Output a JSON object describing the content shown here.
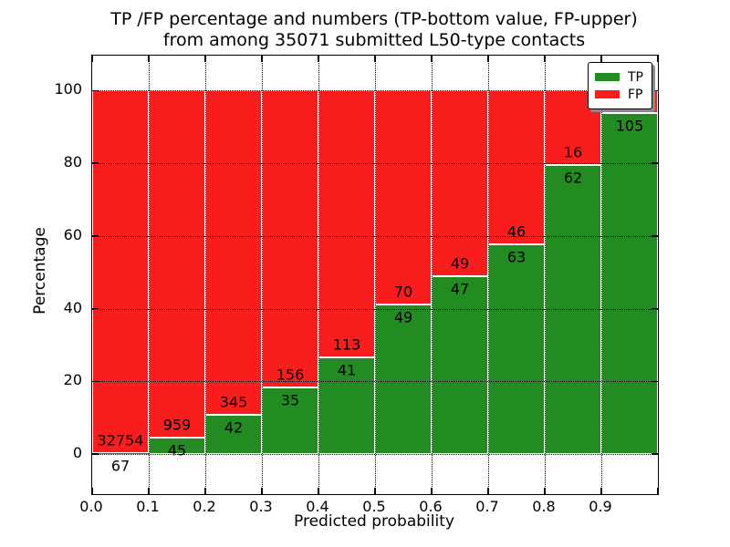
{
  "title": {
    "line1": "TP /FP percentage and numbers (TP-bottom value, FP-upper)",
    "line2": "from among 35071 submitted L50-type contacts"
  },
  "chart_data": {
    "type": "bar",
    "stacked": true,
    "normalized": "each bin scaled to 100%, green TP portion on bottom, red FP portion on top",
    "title": "TP /FP percentage and numbers (TP-bottom value, FP-upper) from among 35071 submitted L50-type contacts",
    "xlabel": "Predicted probability",
    "ylabel": "Percentage",
    "total_contacts": 35071,
    "xlim": [
      0.0,
      1.0
    ],
    "ylim": [
      -11,
      109.6
    ],
    "x_tick_labels": [
      "0.0",
      "0.1",
      "0.2",
      "0.3",
      "0.4",
      "0.5",
      "0.6",
      "0.7",
      "0.8",
      "0.9"
    ],
    "y_tick_values": [
      0,
      20,
      40,
      60,
      80,
      100
    ],
    "y_tick_labels": [
      "0",
      "20",
      "40",
      "60",
      "80",
      "100"
    ],
    "grid": "black dotted gridlines at all ticks, drawn above bars",
    "series_colors": {
      "tp": "#228b22",
      "fp": "#fa1d1d"
    },
    "legend": {
      "position": "upper right",
      "entries": [
        {
          "label": "TP",
          "color": "#228b22"
        },
        {
          "label": "FP",
          "color": "#fa1d1d"
        }
      ]
    },
    "bins": [
      {
        "x_start": 0.0,
        "x_end": 0.1,
        "tp": 67,
        "fp": 32754
      },
      {
        "x_start": 0.1,
        "x_end": 0.2,
        "tp": 45,
        "fp": 959
      },
      {
        "x_start": 0.2,
        "x_end": 0.3,
        "tp": 42,
        "fp": 345
      },
      {
        "x_start": 0.3,
        "x_end": 0.4,
        "tp": 35,
        "fp": 156
      },
      {
        "x_start": 0.4,
        "x_end": 0.5,
        "tp": 41,
        "fp": 113
      },
      {
        "x_start": 0.5,
        "x_end": 0.6,
        "tp": 49,
        "fp": 70
      },
      {
        "x_start": 0.6,
        "x_end": 0.7,
        "tp": 47,
        "fp": 49
      },
      {
        "x_start": 0.7,
        "x_end": 0.8,
        "tp": 63,
        "fp": 46
      },
      {
        "x_start": 0.8,
        "x_end": 0.9,
        "tp": 62,
        "fp": 16
      },
      {
        "x_start": 0.9,
        "x_end": 1.0,
        "tp": 105,
        "fp": 7
      }
    ]
  }
}
